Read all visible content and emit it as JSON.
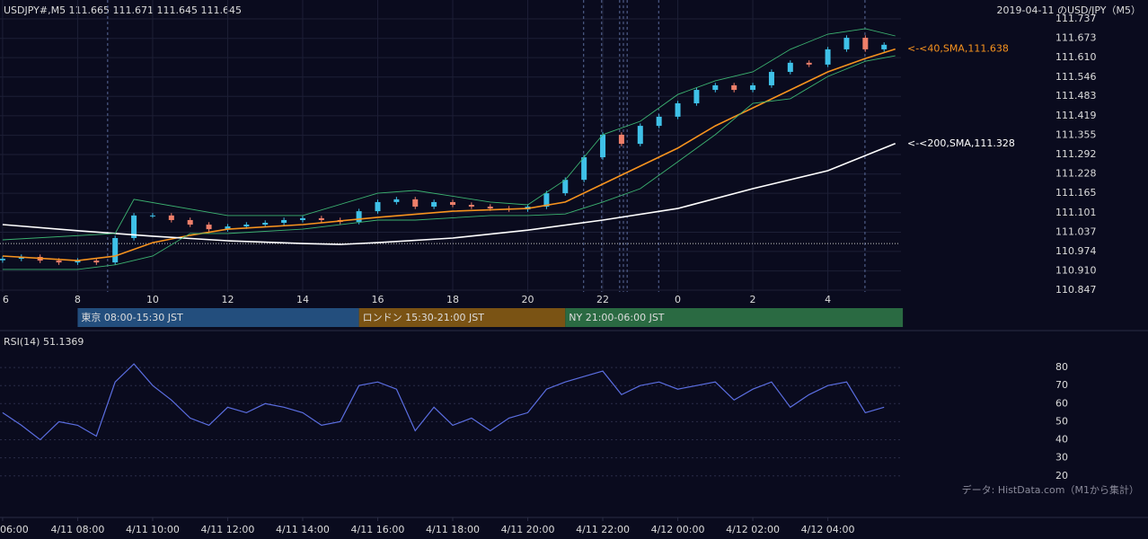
{
  "chart_data": [
    {
      "type": "candlestick",
      "title": "USDJPY#,M5 111.665 111.671 111.645 111.645",
      "subtitle": "2019-04-11 のUSD/JPY（M5）",
      "up_color": "#3fc1e8",
      "down_color": "#ef7f6a",
      "xlim": [
        5.93,
        29.95
      ],
      "xticks": [
        6,
        8,
        10,
        12,
        14,
        16,
        18,
        20,
        22,
        {
          "value": 24,
          "label": "0"
        },
        {
          "value": 26,
          "label": "2"
        },
        {
          "value": 28,
          "label": "4"
        }
      ],
      "ylim": [
        110.847,
        111.737
      ],
      "yticks": [
        111.737,
        111.673,
        {
          "value": 111.61,
          "label": "111.610"
        },
        111.546,
        111.483,
        111.419,
        111.355,
        111.292,
        111.228,
        111.165,
        111.101,
        111.037,
        110.974,
        {
          "value": 110.91,
          "label": "110.910"
        },
        110.847
      ],
      "grid": true,
      "reference_line": 111.0,
      "markers": [
        8.8,
        21.49,
        21.97,
        22.45,
        22.55,
        22.65,
        23.49,
        28.99
      ],
      "candles": {
        "x": [
          6,
          6.5,
          7,
          7.5,
          8,
          8.5,
          9,
          9.5,
          10,
          10.5,
          11,
          11.5,
          12,
          12.5,
          13,
          13.5,
          14,
          14.5,
          15,
          15.5,
          16,
          16.5,
          17,
          17.5,
          18,
          18.5,
          19,
          19.5,
          20,
          20.5,
          21,
          21.5,
          22,
          22.5,
          23,
          23.5,
          24,
          24.5,
          25,
          25.5,
          26,
          26.5,
          27,
          27.5,
          28,
          28.5,
          29,
          29.5
        ],
        "open": [
          110.945,
          110.95,
          110.956,
          110.944,
          110.938,
          110.944,
          110.938,
          111.018,
          111.092,
          111.092,
          111.077,
          111.062,
          111.047,
          111.056,
          111.062,
          111.068,
          111.077,
          111.083,
          111.077,
          111.071,
          111.106,
          111.136,
          111.145,
          111.121,
          111.136,
          111.127,
          111.121,
          111.115,
          111.112,
          111.121,
          111.165,
          111.209,
          111.283,
          111.357,
          111.327,
          111.386,
          111.416,
          111.46,
          111.504,
          111.519,
          111.504,
          111.519,
          111.563,
          111.593,
          111.587,
          111.637,
          111.675,
          111.637
        ],
        "high": [
          110.958,
          110.964,
          110.964,
          110.952,
          110.952,
          110.952,
          111.026,
          111.1,
          111.1,
          111.1,
          111.085,
          111.07,
          111.064,
          111.07,
          111.076,
          111.085,
          111.091,
          111.091,
          111.085,
          111.114,
          111.144,
          111.153,
          111.153,
          111.144,
          111.144,
          111.135,
          111.129,
          111.123,
          111.129,
          111.173,
          111.217,
          111.291,
          111.365,
          111.365,
          111.394,
          111.424,
          111.468,
          111.512,
          111.527,
          111.527,
          111.527,
          111.571,
          111.601,
          111.601,
          111.645,
          111.683,
          111.683,
          111.66
        ],
        "low": [
          110.937,
          110.942,
          110.936,
          110.93,
          110.93,
          110.93,
          110.93,
          111.01,
          111.084,
          111.069,
          111.054,
          111.039,
          111.039,
          111.048,
          111.054,
          111.06,
          111.069,
          111.069,
          111.063,
          111.063,
          111.098,
          111.128,
          111.113,
          111.113,
          111.119,
          111.113,
          111.107,
          111.104,
          111.104,
          111.113,
          111.157,
          111.201,
          111.275,
          111.319,
          111.319,
          111.378,
          111.408,
          111.452,
          111.496,
          111.496,
          111.496,
          111.511,
          111.555,
          111.579,
          111.579,
          111.629,
          111.629,
          111.629
        ],
        "close": [
          110.95,
          110.956,
          110.944,
          110.938,
          110.944,
          110.938,
          111.018,
          111.092,
          111.092,
          111.077,
          111.062,
          111.047,
          111.056,
          111.062,
          111.068,
          111.077,
          111.083,
          111.077,
          111.071,
          111.106,
          111.136,
          111.145,
          111.121,
          111.136,
          111.127,
          111.121,
          111.115,
          111.112,
          111.121,
          111.165,
          111.209,
          111.283,
          111.357,
          111.327,
          111.386,
          111.416,
          111.46,
          111.504,
          111.519,
          111.504,
          111.519,
          111.563,
          111.593,
          111.587,
          111.637,
          111.675,
          111.637,
          111.652
        ]
      },
      "series": [
        {
          "name": "<-<40,SMA,111.638",
          "color": "#f7931e",
          "x": [
            6,
            8,
            9,
            10,
            11,
            12,
            14,
            16,
            18,
            20,
            21,
            22,
            23,
            24,
            25,
            26,
            27,
            28,
            29,
            29.8
          ],
          "values": [
            110.959,
            110.944,
            110.959,
            111.003,
            111.027,
            111.047,
            111.062,
            111.086,
            111.106,
            111.115,
            111.136,
            111.195,
            111.254,
            111.313,
            111.386,
            111.445,
            111.504,
            111.563,
            111.607,
            111.638
          ]
        },
        {
          "name": "<-<200,SMA,111.328",
          "color": "#ffffff",
          "x": [
            6,
            8,
            10,
            12,
            14,
            15,
            16,
            18,
            20,
            22,
            24,
            26,
            28,
            29.8
          ],
          "values": [
            111.062,
            111.042,
            111.024,
            111.009,
            111.0,
            110.997,
            111.003,
            111.018,
            111.044,
            111.077,
            111.115,
            111.18,
            111.239,
            111.328
          ]
        },
        {
          "color": "#3cb371",
          "x": [
            6,
            9,
            9.5,
            12,
            14,
            16,
            17,
            19,
            20,
            21,
            22,
            23,
            24,
            25,
            26,
            27,
            28,
            29,
            29.8
          ],
          "values": [
            111.012,
            111.033,
            111.145,
            111.092,
            111.092,
            111.165,
            111.174,
            111.136,
            111.127,
            111.209,
            111.357,
            111.401,
            111.489,
            111.534,
            111.563,
            111.637,
            111.687,
            111.705,
            111.681
          ]
        },
        {
          "color": "#3cb371",
          "x": [
            6,
            8,
            9,
            10,
            11,
            12,
            14,
            16,
            17,
            19,
            20,
            21,
            22,
            23,
            24,
            25,
            26,
            27,
            28,
            29,
            29.8
          ],
          "values": [
            110.915,
            110.915,
            110.93,
            110.959,
            111.033,
            111.033,
            111.047,
            111.077,
            111.077,
            111.092,
            111.092,
            111.097,
            111.136,
            111.18,
            111.268,
            111.357,
            111.46,
            111.475,
            111.548,
            111.598,
            111.616
          ]
        }
      ],
      "sessions": [
        {
          "label": "東京 08:00-15:30 JST",
          "start": 8,
          "end": 15.5,
          "color": "#234e7d"
        },
        {
          "label": "ロンドン 15:30-21:00 JST",
          "start": 15.5,
          "end": 21,
          "color": "#7a5314"
        },
        {
          "label": "NY 21:00-06:00 JST",
          "start": 21,
          "end": 30,
          "color": "#2a6a42"
        }
      ]
    },
    {
      "type": "line",
      "title": "RSI(14) 51.1369",
      "source": "データ: HistData.com（M1から集計）",
      "color": "#5b6ee1",
      "xlim": [
        5.93,
        29.95
      ],
      "xticks": [
        {
          "value": 6,
          "label": "06:00"
        },
        {
          "value": 8,
          "label": "4/11 08:00"
        },
        {
          "value": 10,
          "label": "4/11 10:00"
        },
        {
          "value": 12,
          "label": "4/11 12:00"
        },
        {
          "value": 14,
          "label": "4/11 14:00"
        },
        {
          "value": 16,
          "label": "4/11 16:00"
        },
        {
          "value": 18,
          "label": "4/11 18:00"
        },
        {
          "value": 20,
          "label": "4/11 20:00"
        },
        {
          "value": 22,
          "label": "4/11 22:00"
        },
        {
          "value": 24,
          "label": "4/12 00:00"
        },
        {
          "value": 26,
          "label": "4/12 02:00"
        },
        {
          "value": 28,
          "label": "4/12 04:00"
        }
      ],
      "ylim": [
        0,
        87
      ],
      "yticks": [
        20,
        30,
        40,
        50,
        60,
        70,
        80
      ],
      "grid": true,
      "x": [
        6,
        6.5,
        7,
        7.5,
        8,
        8.5,
        9,
        9.5,
        10,
        10.5,
        11,
        11.5,
        12,
        12.5,
        13,
        13.5,
        14,
        14.5,
        15,
        15.5,
        16,
        16.5,
        17,
        17.5,
        18,
        18.5,
        19,
        19.5,
        20,
        20.5,
        21,
        21.5,
        22,
        22.5,
        23,
        23.5,
        24,
        24.5,
        25,
        25.5,
        26,
        26.5,
        27,
        27.5,
        28,
        28.5,
        29,
        29.5
      ],
      "values": [
        55,
        48,
        40,
        50,
        48,
        42,
        72,
        82,
        70,
        62,
        52,
        48,
        58,
        55,
        60,
        58,
        55,
        48,
        50,
        70,
        72,
        68,
        45,
        58,
        48,
        52,
        45,
        52,
        55,
        68,
        72,
        75,
        78,
        65,
        70,
        72,
        68,
        70,
        72,
        62,
        68,
        72,
        58,
        65,
        70,
        72,
        55,
        58
      ]
    }
  ]
}
